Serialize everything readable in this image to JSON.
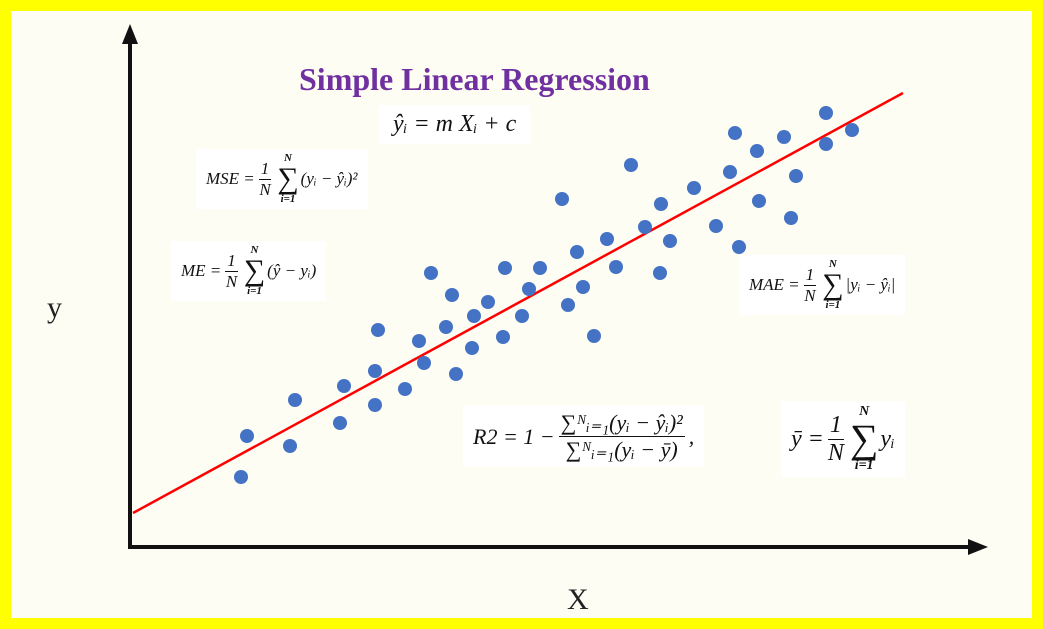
{
  "title": "Simple Linear Regression",
  "axes": {
    "y": "y",
    "x": "X"
  },
  "formulas": {
    "prediction": "ŷᵢ = m Xᵢ + c",
    "mse": {
      "lhs": "MSE =",
      "num": "1",
      "den": "N",
      "sum_top": "N",
      "sum_bottom": "i=1",
      "term": "(yᵢ − ŷᵢ)²"
    },
    "me": {
      "lhs": "ME =",
      "num": "1",
      "den": "N",
      "sum_top": "N",
      "sum_bottom": "i=1",
      "term": "(ŷ − yᵢ)"
    },
    "mae": {
      "lhs": "MAE =",
      "num": "1",
      "den": "N",
      "sum_top": "N",
      "sum_bottom": "i=1",
      "term": "|yᵢ − ŷᵢ|"
    },
    "r2": {
      "lhs": "R2 = 1 −",
      "num": "∑ᴺᵢ₌₁(yᵢ − ŷᵢ)²",
      "den": "∑ᴺᵢ₌₁(yᵢ − ȳ)",
      "tail": ","
    },
    "mean": {
      "lhs": "ȳ =",
      "num": "1",
      "den": "N",
      "sum_top": "N",
      "sum_bottom": "i=1",
      "term": "yᵢ"
    }
  }
}
